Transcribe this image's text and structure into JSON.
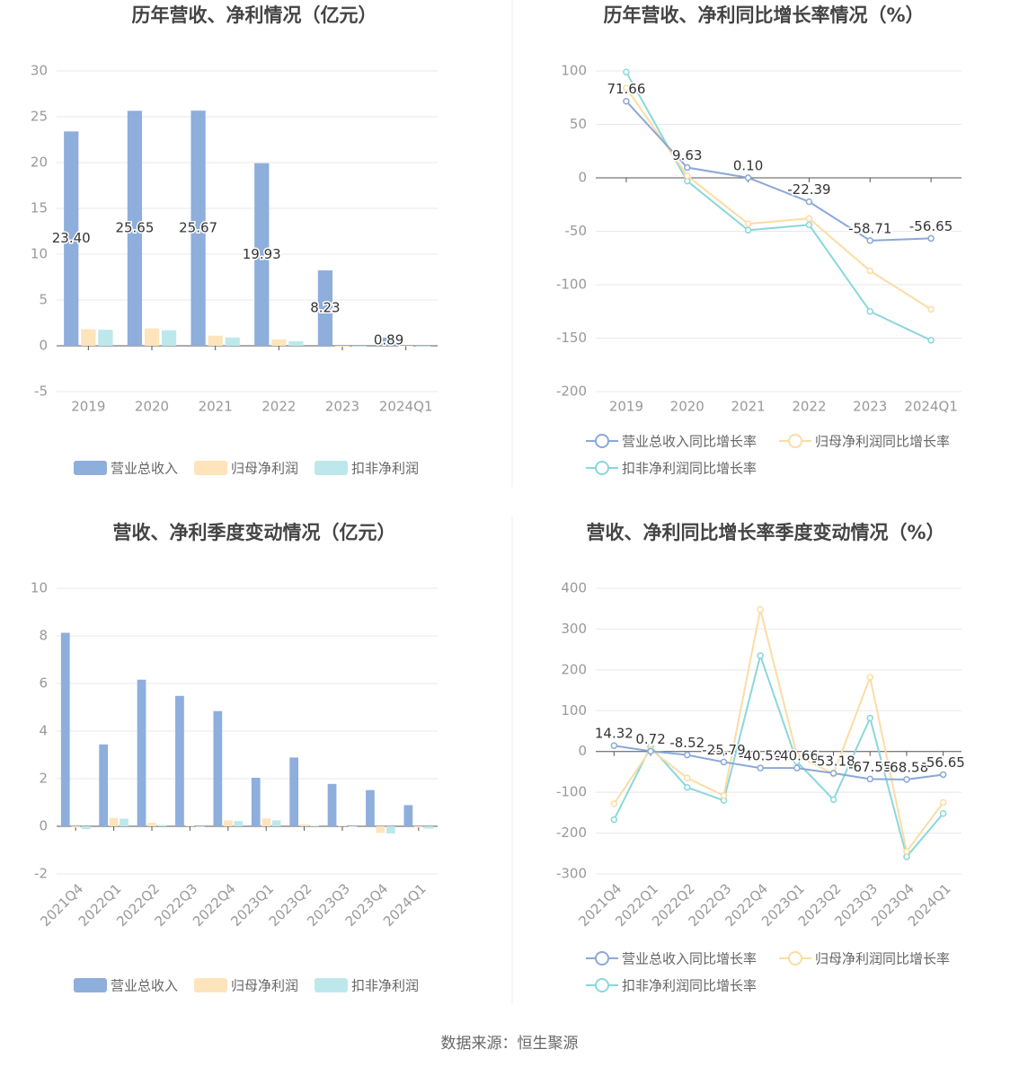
{
  "chart_data": [
    {
      "type": "bar",
      "title": "历年营收、净利情况（亿元）",
      "categories": [
        "2019",
        "2020",
        "2021",
        "2022",
        "2023",
        "2024Q1"
      ],
      "series": [
        {
          "name": "营业总收入",
          "color": "#8eaedc",
          "values": [
            23.4,
            25.65,
            25.67,
            19.93,
            8.23,
            0.89
          ],
          "value_labels": [
            "23.40",
            "25.65",
            "25.67",
            "19.93",
            "8.23",
            "0.89"
          ]
        },
        {
          "name": "归母净利润",
          "color": "#fde4bb",
          "values": [
            1.8,
            1.9,
            1.1,
            0.7,
            -0.1,
            -0.05
          ]
        },
        {
          "name": "扣非净利润",
          "color": "#bde8eb",
          "values": [
            1.75,
            1.7,
            0.9,
            0.5,
            -0.1,
            -0.1
          ]
        }
      ],
      "ylim": [
        -5,
        30
      ],
      "yticks": [
        -5,
        0,
        5,
        10,
        15,
        20,
        25,
        30
      ],
      "grid": true,
      "legend": "bottom"
    },
    {
      "type": "line",
      "title": "历年营收、净利同比增长率情况（%）",
      "categories": [
        "2019",
        "2020",
        "2021",
        "2022",
        "2023",
        "2024Q1"
      ],
      "series": [
        {
          "name": "营业总收入同比增长率",
          "color": "#8aa8d8",
          "values": [
            71.66,
            9.63,
            0.1,
            -22.39,
            -58.71,
            -56.65
          ],
          "value_labels": [
            "71.66",
            "9.63",
            "0.10",
            "-22.39",
            "-58.71",
            "-56.65"
          ]
        },
        {
          "name": "归母净利润同比增长率",
          "color": "#fcdca4",
          "values": [
            84,
            2,
            -43,
            -38,
            -87,
            -123
          ]
        },
        {
          "name": "扣非净利润同比增长率",
          "color": "#8ad7db",
          "values": [
            99,
            -3,
            -49,
            -44,
            -125,
            -152
          ]
        }
      ],
      "ylim": [
        -200,
        100
      ],
      "yticks": [
        -200,
        -150,
        -100,
        -50,
        0,
        50,
        100
      ],
      "grid": true,
      "legend": "bottom"
    },
    {
      "type": "bar",
      "title": "营收、净利季度变动情况（亿元）",
      "categories": [
        "2021Q4",
        "2022Q1",
        "2022Q2",
        "2022Q3",
        "2022Q4",
        "2023Q1",
        "2023Q2",
        "2023Q3",
        "2023Q4",
        "2024Q1"
      ],
      "series": [
        {
          "name": "营业总收入",
          "color": "#8eaedc",
          "values": [
            8.13,
            3.44,
            6.16,
            5.48,
            4.84,
            2.04,
            2.89,
            1.78,
            1.52,
            0.89
          ]
        },
        {
          "name": "归母净利润",
          "color": "#fde4bb",
          "values": [
            -0.05,
            0.35,
            0.15,
            0.03,
            0.25,
            0.33,
            0.08,
            0.03,
            -0.28,
            -0.05
          ]
        },
        {
          "name": "扣非净利润",
          "color": "#bde8eb",
          "values": [
            -0.12,
            0.32,
            0.05,
            -0.03,
            0.22,
            0.25,
            0.02,
            -0.02,
            -0.3,
            -0.1
          ]
        }
      ],
      "ylim": [
        -2,
        10
      ],
      "yticks": [
        -2,
        0,
        2,
        4,
        6,
        8,
        10
      ],
      "grid": true,
      "legend": "bottom"
    },
    {
      "type": "line",
      "title": "营收、净利同比增长率季度变动情况（%）",
      "categories": [
        "2021Q4",
        "2022Q1",
        "2022Q2",
        "2022Q3",
        "2022Q4",
        "2023Q1",
        "2023Q2",
        "2023Q3",
        "2023Q4",
        "2024Q1"
      ],
      "series": [
        {
          "name": "营业总收入同比增长率",
          "color": "#8aa8d8",
          "values": [
            14.32,
            0.72,
            -8.52,
            -25.79,
            -40.5,
            -40.66,
            -53.18,
            -67.55,
            -68.58,
            -56.65
          ],
          "value_labels": [
            "14.32",
            "0.72",
            "-8.52",
            "-25.79",
            "-40.50",
            "-40.66",
            "-53.18",
            "-67.55",
            "-68.58",
            "-56.65"
          ]
        },
        {
          "name": "归母净利润同比增长率",
          "color": "#fcdca4",
          "values": [
            -128,
            5,
            -65,
            -108,
            348,
            -10,
            -55,
            182,
            -245,
            -125
          ]
        },
        {
          "name": "扣非净利润同比增长率",
          "color": "#8ad7db",
          "values": [
            -167,
            12,
            -88,
            -120,
            235,
            -25,
            -118,
            82,
            -258,
            -152
          ]
        }
      ],
      "ylim": [
        -300,
        400
      ],
      "yticks": [
        -300,
        -200,
        -100,
        0,
        100,
        200,
        300,
        400
      ],
      "grid": true,
      "legend": "bottom"
    }
  ],
  "source": "数据来源：恒生聚源"
}
